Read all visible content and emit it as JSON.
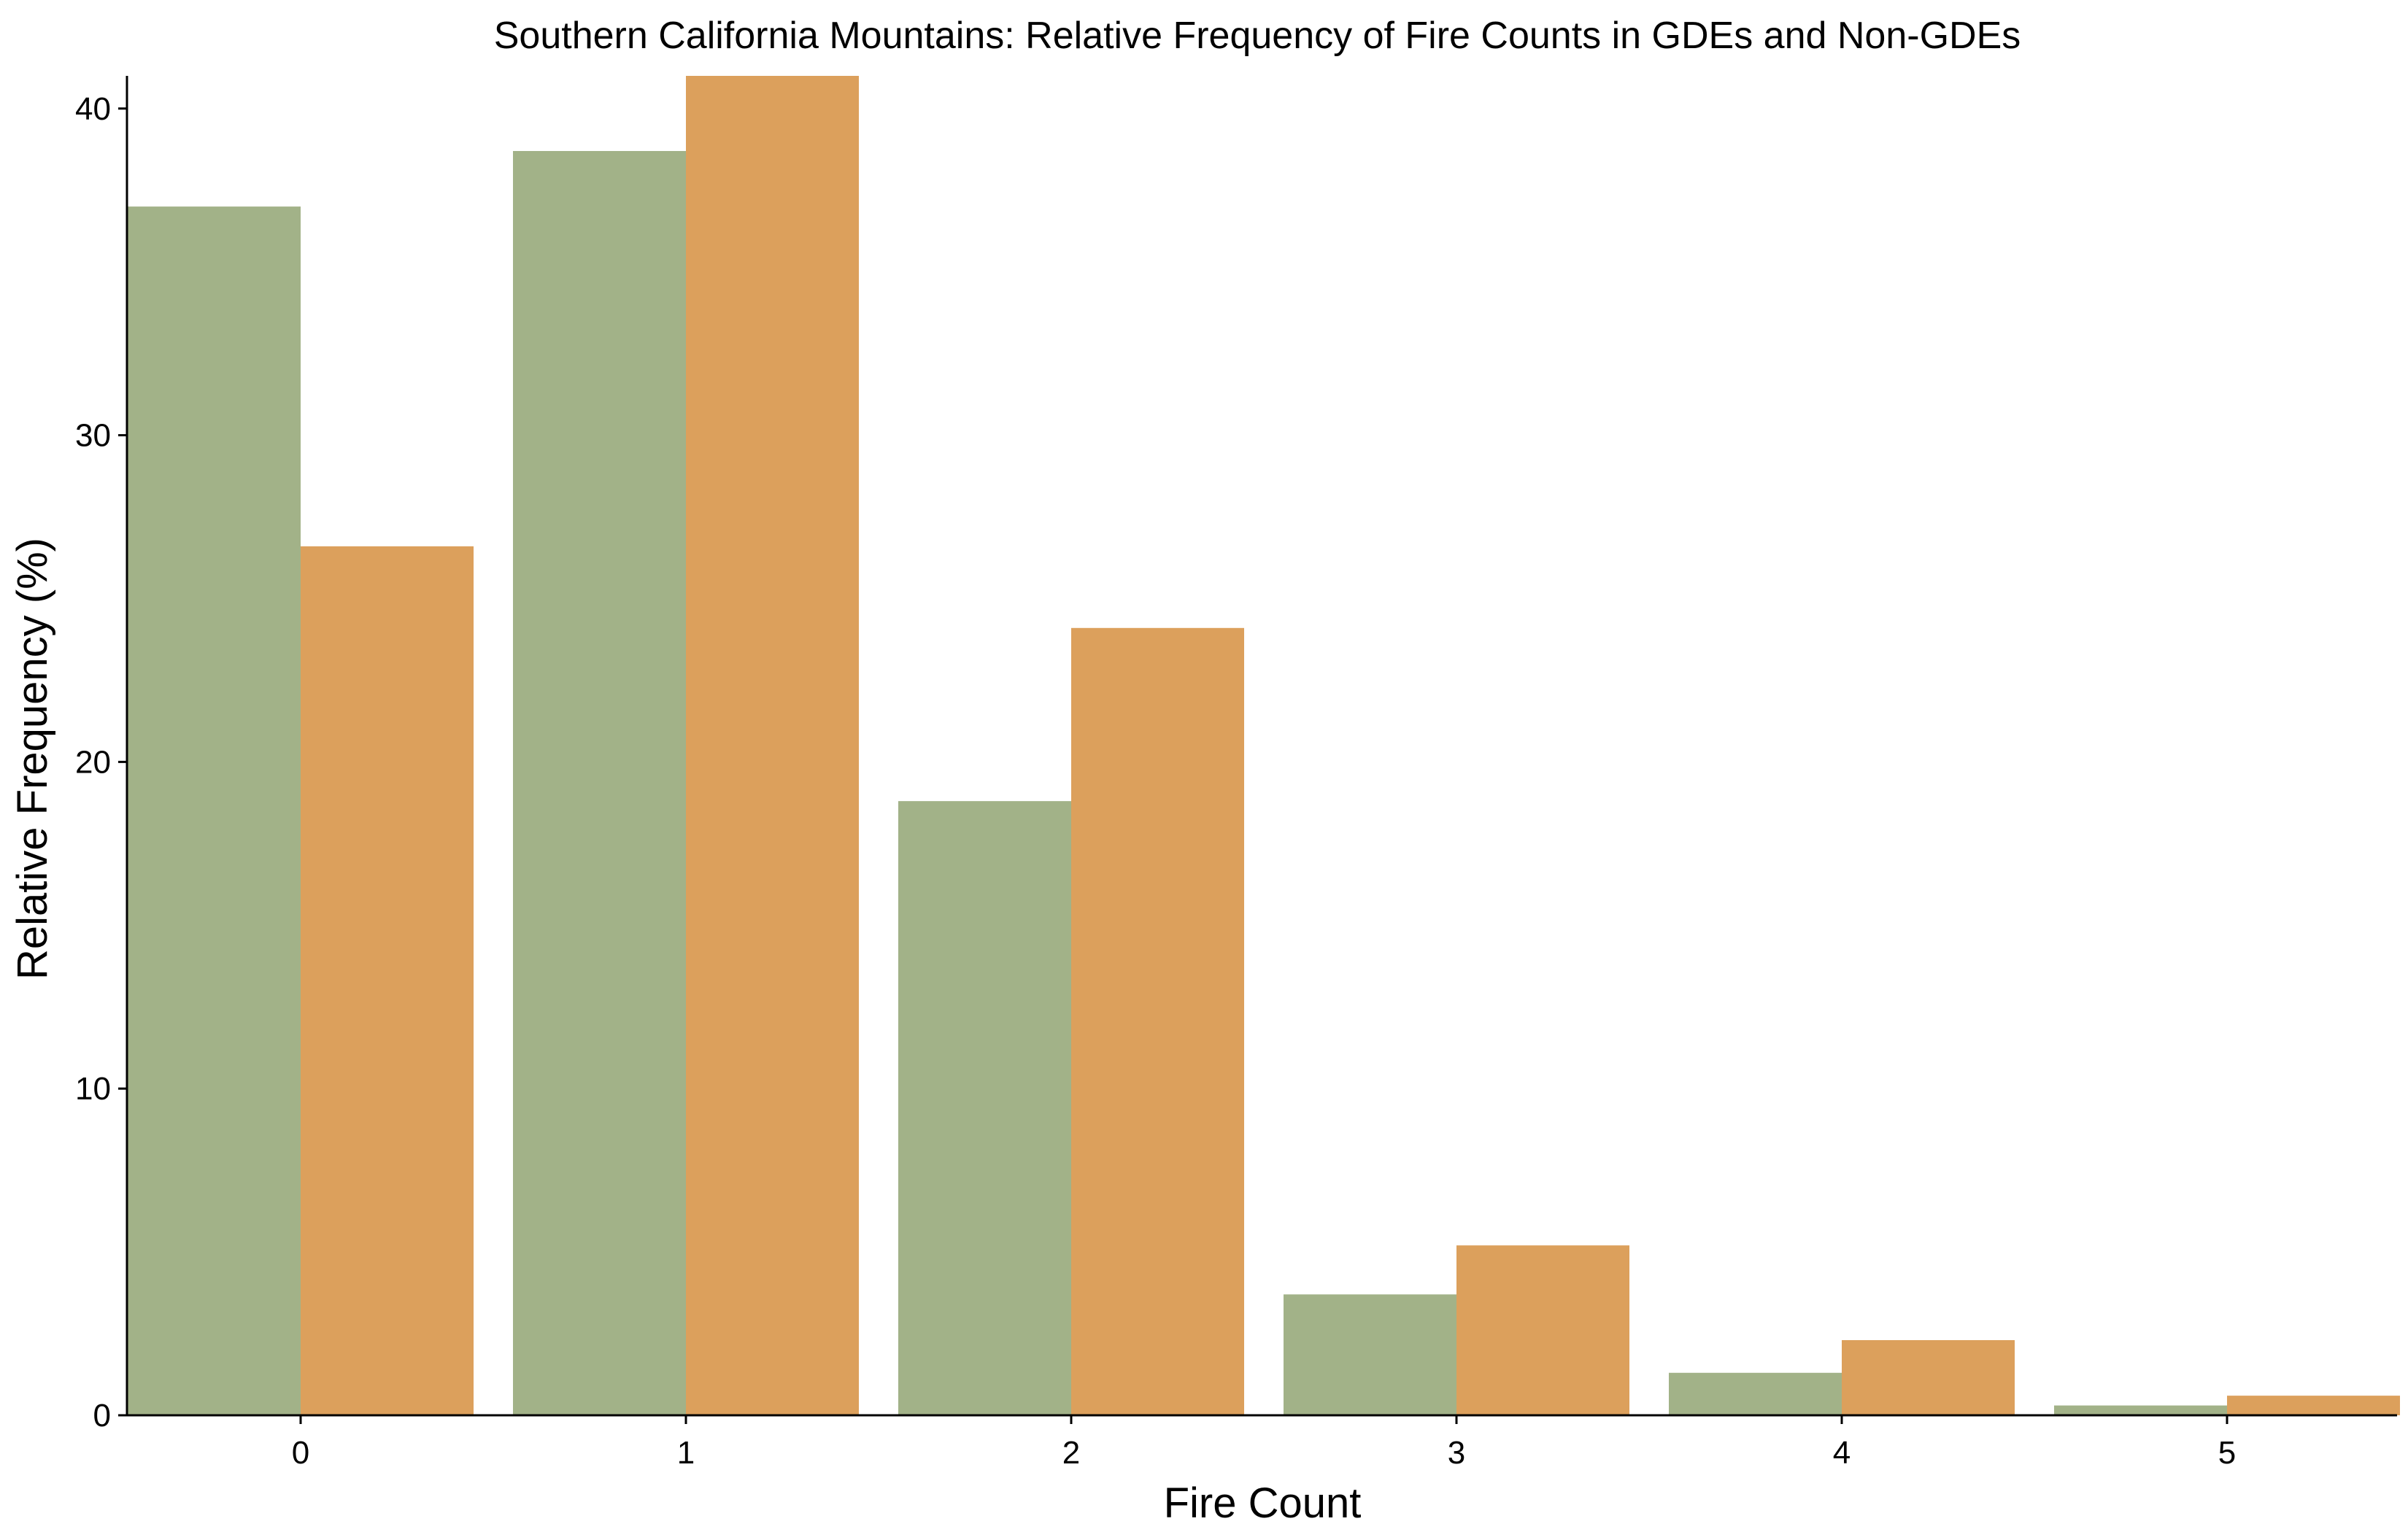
{
  "chart_data": {
    "type": "bar",
    "title": "Southern California Mountains: Relative Frequency of Fire Counts in GDEs and Non-GDEs",
    "xlabel": "Fire Count",
    "ylabel": "Relative Frequency (%)",
    "categories": [
      "0",
      "1",
      "2",
      "3",
      "4",
      "5"
    ],
    "ylim": [
      0,
      41
    ],
    "yticks": [
      "0",
      "10",
      "20",
      "30",
      "40"
    ],
    "grid": false,
    "legend": "none",
    "series": [
      {
        "color": "#a2b288",
        "values": [
          37.0,
          38.7,
          18.8,
          3.7,
          1.3,
          0.3
        ]
      },
      {
        "color": "#dca05c",
        "values": [
          26.6,
          41.0,
          24.1,
          5.2,
          2.3,
          0.6
        ]
      }
    ]
  }
}
